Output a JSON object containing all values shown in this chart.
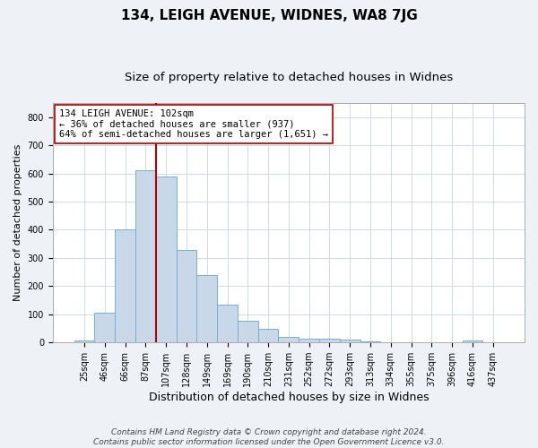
{
  "title1": "134, LEIGH AVENUE, WIDNES, WA8 7JG",
  "title2": "Size of property relative to detached houses in Widnes",
  "xlabel": "Distribution of detached houses by size in Widnes",
  "ylabel": "Number of detached properties",
  "categories": [
    "25sqm",
    "46sqm",
    "66sqm",
    "87sqm",
    "107sqm",
    "128sqm",
    "149sqm",
    "169sqm",
    "190sqm",
    "210sqm",
    "231sqm",
    "252sqm",
    "272sqm",
    "293sqm",
    "313sqm",
    "334sqm",
    "355sqm",
    "375sqm",
    "396sqm",
    "416sqm",
    "437sqm"
  ],
  "values": [
    7,
    107,
    400,
    612,
    590,
    328,
    238,
    135,
    77,
    50,
    20,
    13,
    13,
    10,
    5,
    0,
    0,
    0,
    0,
    7,
    0
  ],
  "bar_color": "#c8d8e8",
  "bar_edge_color": "#7aadcc",
  "vline_color": "#aa0000",
  "vline_x": 3.5,
  "annotation_text": "134 LEIGH AVENUE: 102sqm\n← 36% of detached houses are smaller (937)\n64% of semi-detached houses are larger (1,651) →",
  "annotation_box_color": "white",
  "annotation_box_edge": "#aa0000",
  "ylim": [
    0,
    850
  ],
  "yticks": [
    0,
    100,
    200,
    300,
    400,
    500,
    600,
    700,
    800
  ],
  "bg_color": "#eef2f7",
  "plot_bg_color": "white",
  "grid_color": "#c8d4e0",
  "footer": "Contains HM Land Registry data © Crown copyright and database right 2024.\nContains public sector information licensed under the Open Government Licence v3.0.",
  "title1_fontsize": 11,
  "title2_fontsize": 9.5,
  "xlabel_fontsize": 9,
  "ylabel_fontsize": 8,
  "tick_fontsize": 7,
  "annotation_fontsize": 7.5,
  "footer_fontsize": 6.5
}
